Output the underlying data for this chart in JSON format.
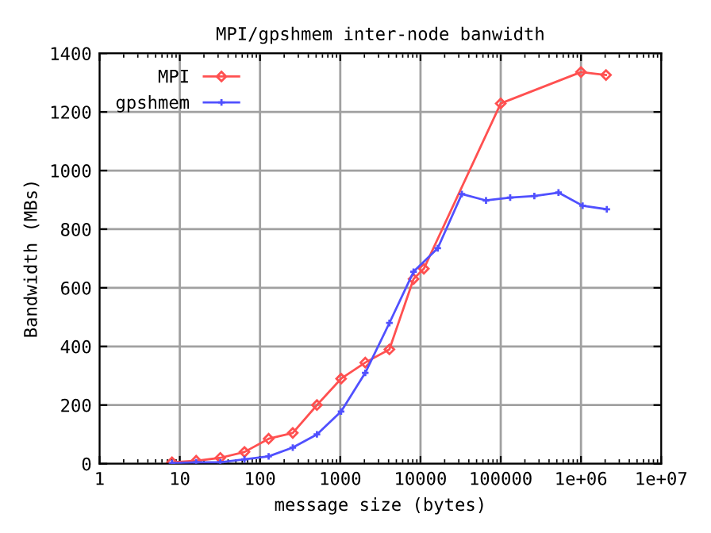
{
  "chart_data": {
    "type": "line",
    "title": "MPI/gpshmem inter-node banwidth",
    "xlabel": "message size (bytes)",
    "ylabel": "Bandwidth (MBs)",
    "log": "x",
    "grid": true,
    "legend": "top left",
    "xlim": [
      1,
      10000000
    ],
    "xticks": [
      {
        "value": 1,
        "label": "1"
      },
      {
        "value": 10,
        "label": "10"
      },
      {
        "value": 100,
        "label": "100"
      },
      {
        "value": 1000,
        "label": "1000"
      },
      {
        "value": 10000,
        "label": "10000"
      },
      {
        "value": 100000,
        "label": "100000"
      },
      {
        "value": 1000000,
        "label": "1e+06"
      },
      {
        "value": 10000000,
        "label": "1e+07"
      }
    ],
    "ylim": [
      0,
      1400
    ],
    "yticks": [
      0,
      200,
      400,
      600,
      800,
      1000,
      1200,
      1400
    ],
    "series": [
      {
        "name": "MPI",
        "color": "#ff5050",
        "marker": "diamond",
        "x": [
          8,
          16,
          32,
          64,
          128,
          256,
          512,
          1024,
          2048,
          4096,
          8192,
          11000,
          100000,
          1000000,
          2050000
        ],
        "values": [
          5,
          10,
          20,
          40,
          85,
          105,
          200,
          290,
          345,
          390,
          630,
          665,
          1229,
          1336,
          1326
        ]
      },
      {
        "name": "gpshmem",
        "color": "#5050ff",
        "marker": "cross",
        "x": [
          8,
          16,
          32,
          64,
          128,
          256,
          512,
          1024,
          2048,
          4096,
          8192,
          16384,
          32768,
          65536,
          131072,
          262144,
          524288,
          1048576,
          2097152
        ],
        "values": [
          2,
          5,
          5,
          15,
          25,
          55,
          100,
          178,
          310,
          480,
          655,
          735,
          920,
          898,
          908,
          913,
          925,
          880,
          868
        ]
      }
    ]
  }
}
